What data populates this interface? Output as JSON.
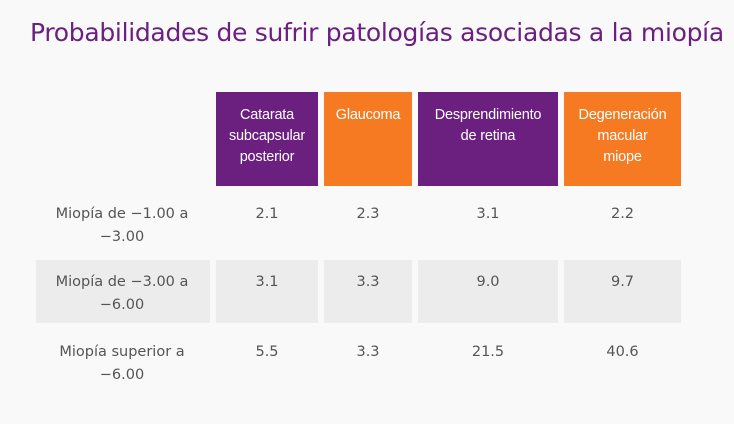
{
  "title": "Probabilidades de sufrir patologías asociadas a la miopía",
  "colors": {
    "purple": "#6b2080",
    "orange": "#f57a21",
    "row_band": "#ececec",
    "text": "#555555"
  },
  "headers": [
    {
      "lines": [
        "Catarata",
        "subcapsular",
        "posterior"
      ],
      "color": "purple"
    },
    {
      "lines": [
        "Glaucoma"
      ],
      "color": "orange"
    },
    {
      "lines": [
        "Desprendimiento",
        "de retina"
      ],
      "color": "purple"
    },
    {
      "lines": [
        "Degeneración",
        "macular",
        "miope"
      ],
      "color": "orange"
    }
  ],
  "rows": [
    {
      "label_lines": [
        "Miopía de −1.00 a",
        "−3.00"
      ],
      "values": [
        "2.1",
        "2.3",
        "3.1",
        "2.2"
      ]
    },
    {
      "label_lines": [
        "Miopía de −3.00 a",
        "−6.00"
      ],
      "values": [
        "3.1",
        "3.3",
        "9.0",
        "9.7"
      ]
    },
    {
      "label_lines": [
        "Miopía superior a",
        "−6.00"
      ],
      "values": [
        "5.5",
        "3.3",
        "21.5",
        "40.6"
      ]
    }
  ]
}
